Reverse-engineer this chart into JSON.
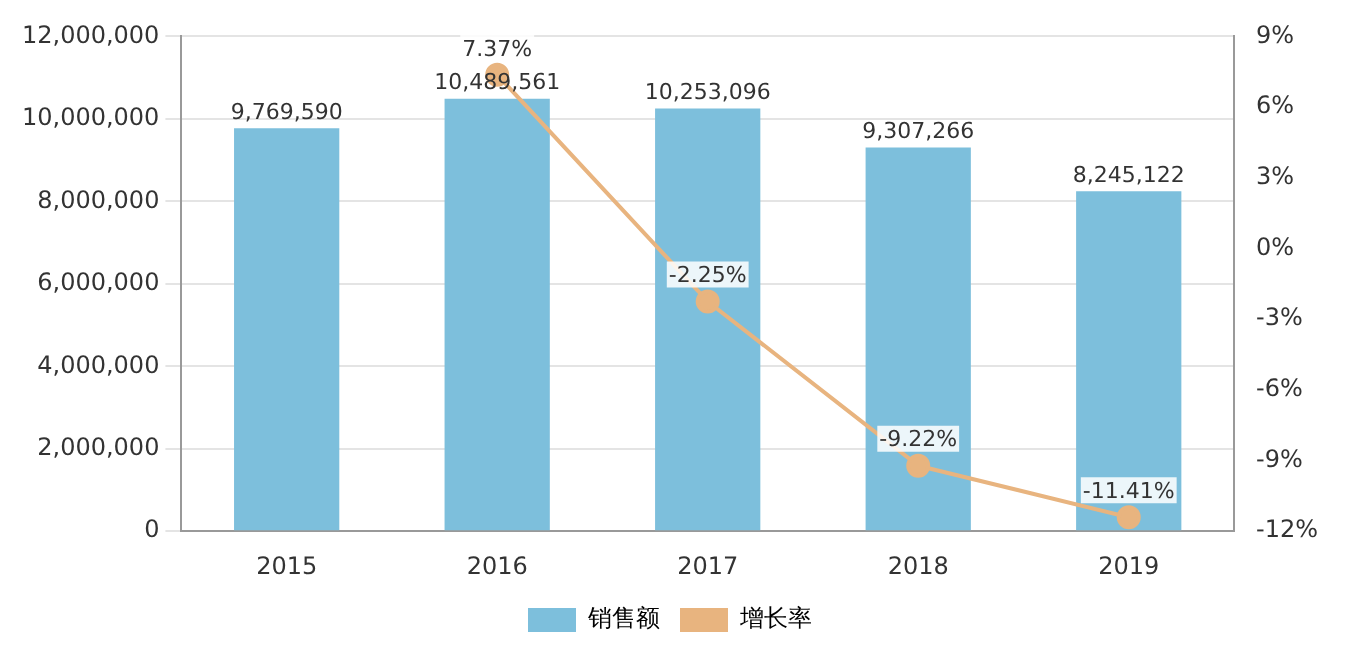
{
  "chart_data": {
    "type": "bar",
    "categories": [
      "2015",
      "2016",
      "2017",
      "2018",
      "2019"
    ],
    "series": [
      {
        "name": "销售额",
        "color": "#7dbfdc",
        "values": [
          9769590,
          10489561,
          10253096,
          9307266,
          8245122
        ],
        "value_labels": [
          "9,769,590",
          "10,489,561",
          "10,253,096",
          "9,307,266",
          "8,245,122"
        ]
      },
      {
        "name": "增长率",
        "type": "line",
        "axis": "y2",
        "color": "#e8b47f",
        "values": [
          null,
          7.37,
          -2.25,
          -9.22,
          -11.41
        ],
        "value_labels": [
          null,
          "7.37%",
          "-2.25%",
          "-9.22%",
          "-11.41%"
        ]
      }
    ],
    "ylim": [
      0,
      12000000
    ],
    "yticks": [
      {
        "value": 0,
        "label": "0"
      },
      {
        "value": 2000000,
        "label": "2,000,000"
      },
      {
        "value": 4000000,
        "label": "4,000,000"
      },
      {
        "value": 6000000,
        "label": "6,000,000"
      },
      {
        "value": 8000000,
        "label": "8,000,000"
      },
      {
        "value": 10000000,
        "label": "10,000,000"
      },
      {
        "value": 12000000,
        "label": "12,000,000"
      }
    ],
    "y2lim": [
      -12,
      9
    ],
    "y2ticks": [
      {
        "value": -12,
        "label": "-12%"
      },
      {
        "value": -9,
        "label": "-9%"
      },
      {
        "value": -6,
        "label": "-6%"
      },
      {
        "value": -3,
        "label": "-3%"
      },
      {
        "value": 0,
        "label": "0%"
      },
      {
        "value": 3,
        "label": "3%"
      },
      {
        "value": 6,
        "label": "6%"
      },
      {
        "value": 9,
        "label": "9%"
      }
    ],
    "grid": "y",
    "legend": "bottom",
    "marker": "circle",
    "line_style": "solid"
  }
}
